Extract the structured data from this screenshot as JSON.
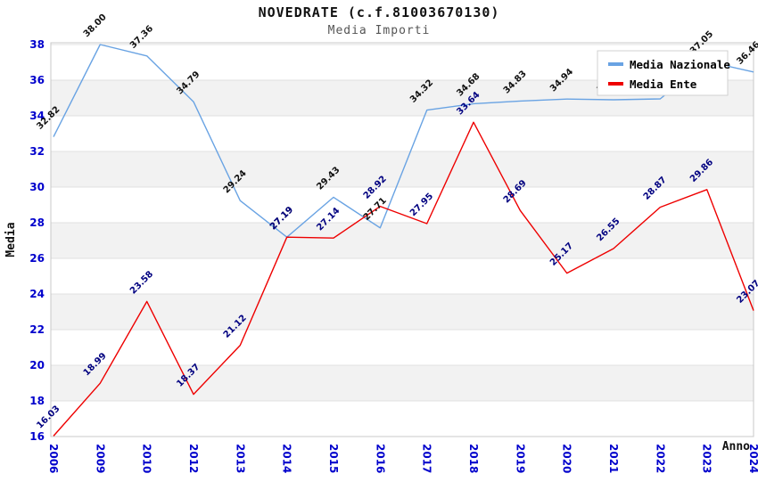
{
  "header": {
    "title": "NOVEDRATE (c.f.81003670130)",
    "subtitle": "Media Importi"
  },
  "legend": {
    "items": [
      {
        "label": "Media Nazionale",
        "color": "#69a3e3"
      },
      {
        "label": "Media Ente",
        "color": "#ee0000"
      }
    ]
  },
  "axes": {
    "y_title": "Media",
    "x_title": "Anno",
    "y_ticks": [
      16,
      18,
      20,
      22,
      24,
      26,
      28,
      30,
      32,
      34,
      36,
      38
    ]
  },
  "chart_data": {
    "type": "line",
    "title": "NOVEDRATE (c.f.81003670130)",
    "subtitle": "Media Importi",
    "xlabel": "Anno",
    "ylabel": "Media",
    "categories": [
      "2006",
      "2009",
      "2010",
      "2012",
      "2013",
      "2014",
      "2015",
      "2016",
      "2017",
      "2018",
      "2019",
      "2020",
      "2021",
      "2022",
      "2023",
      "2024"
    ],
    "series": [
      {
        "name": "Media Nazionale",
        "color": "#69a3e3",
        "label_color": "#111111",
        "values": [
          32.82,
          38.0,
          37.36,
          34.79,
          29.24,
          27.19,
          29.43,
          27.71,
          34.32,
          34.68,
          34.83,
          34.94,
          34.9,
          34.95,
          37.05,
          36.46
        ]
      },
      {
        "name": "Media Ente",
        "color": "#ee0000",
        "label_color": "#000080",
        "values": [
          16.03,
          18.99,
          23.58,
          18.37,
          21.12,
          27.19,
          27.14,
          28.92,
          27.95,
          33.64,
          28.69,
          25.17,
          26.55,
          28.87,
          29.86,
          23.07
        ]
      }
    ],
    "ylim": [
      16,
      38
    ],
    "y_tick_step": 2,
    "grid": "horizontal-bands",
    "legend_position": "top-right",
    "note": "Media Nazionale 2021 and 2022 value labels are hidden behind the legend box; those two values are estimated from the line position"
  },
  "colors": {
    "grid_line": "#e0e0e0",
    "band_fill": "#f2f2f2",
    "plot_border": "#c8c8c8",
    "tick_label": "#0000cc",
    "nazionale_value_label": "#111111",
    "ente_value_label": "#000080"
  }
}
